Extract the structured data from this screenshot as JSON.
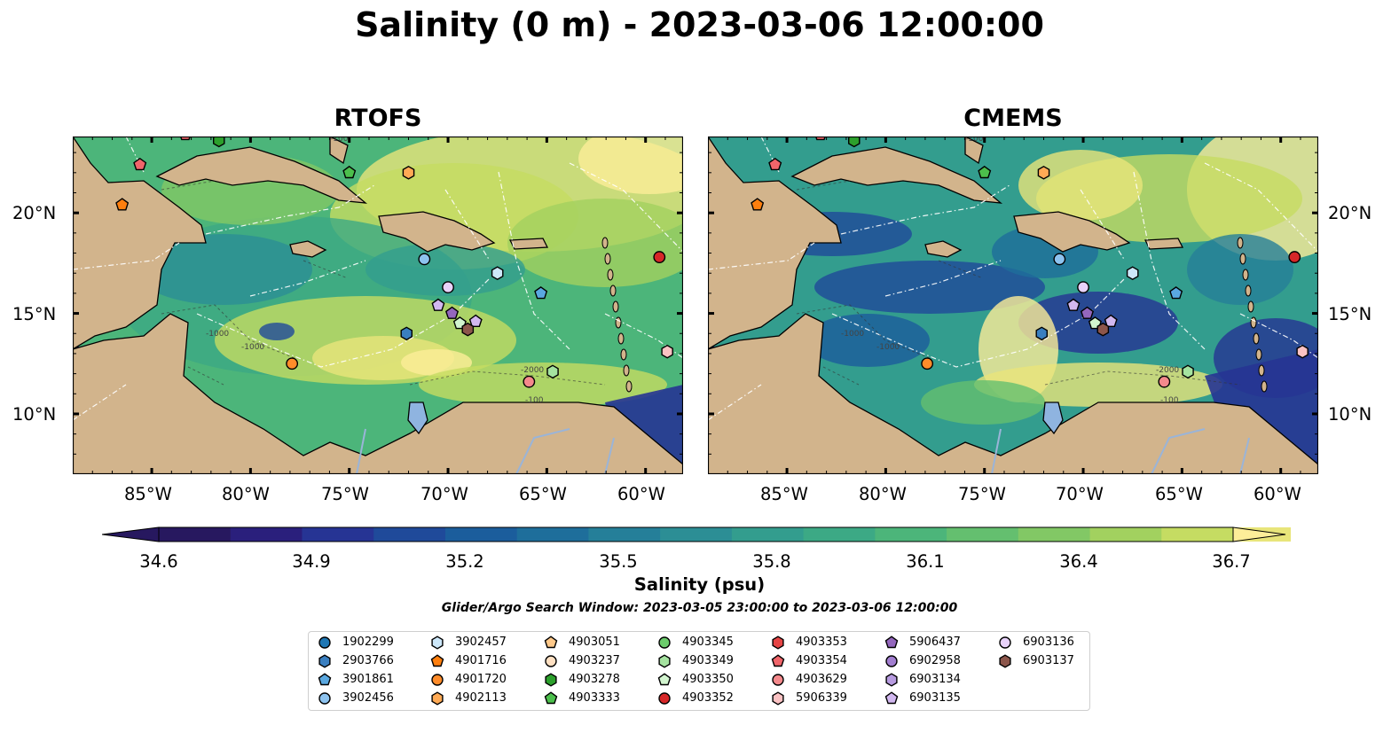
{
  "title": "Salinity (0 m) - 2023-03-06 12:00:00",
  "panels": [
    {
      "title": "RTOFS"
    },
    {
      "title": "CMEMS"
    }
  ],
  "lat_ticks": [
    "20°N",
    "15°N",
    "10°N"
  ],
  "lon_ticks": [
    "85°W",
    "80°W",
    "75°W",
    "70°W",
    "65°W",
    "60°W"
  ],
  "contour_labels": [
    "-100",
    "-1000",
    "-2000"
  ],
  "colorbar": {
    "ticks": [
      "34.6",
      "34.9",
      "35.2",
      "35.5",
      "35.8",
      "36.1",
      "36.4",
      "36.7"
    ],
    "label": "Salinity (psu)",
    "vmin": 34.6,
    "vmax": 36.7,
    "colors": [
      "#27185f",
      "#2a1f7c",
      "#263494",
      "#1f4a9a",
      "#1b5d9c",
      "#1e6e9b",
      "#257f99",
      "#2c8e95",
      "#339d8e",
      "#3ca985",
      "#4cb57a",
      "#64bf6f",
      "#82c865",
      "#a2d15f",
      "#c5dc62",
      "#e8e57a",
      "#fdee99"
    ]
  },
  "search_window": "Glider/Argo Search Window: 2023-03-05 23:00:00 to 2023-03-06 12:00:00",
  "legend": [
    {
      "id": "1902299",
      "marker": "circle",
      "color": "#1f77b4"
    },
    {
      "id": "2903766",
      "marker": "hexagon",
      "color": "#3a7fc0"
    },
    {
      "id": "3901861",
      "marker": "pentagon",
      "color": "#5aa8e0"
    },
    {
      "id": "3902456",
      "marker": "circle",
      "color": "#8dc3ef"
    },
    {
      "id": "3902457",
      "marker": "hexagon",
      "color": "#cde8fa"
    },
    {
      "id": "4901716",
      "marker": "pentagon",
      "color": "#ff7f0e"
    },
    {
      "id": "4901720",
      "marker": "circle",
      "color": "#ff8c2a"
    },
    {
      "id": "4902113",
      "marker": "hexagon",
      "color": "#ffaa55"
    },
    {
      "id": "4903051",
      "marker": "pentagon",
      "color": "#ffc98a"
    },
    {
      "id": "4903237",
      "marker": "circle",
      "color": "#ffe0c2"
    },
    {
      "id": "4903278",
      "marker": "hexagon",
      "color": "#2ca02c"
    },
    {
      "id": "4903333",
      "marker": "pentagon",
      "color": "#4cbf4c"
    },
    {
      "id": "4903345",
      "marker": "circle",
      "color": "#6ccc6c"
    },
    {
      "id": "4903349",
      "marker": "hexagon",
      "color": "#a5e3a0"
    },
    {
      "id": "4903350",
      "marker": "pentagon",
      "color": "#d2f5cf"
    },
    {
      "id": "4903352",
      "marker": "circle",
      "color": "#d62728"
    },
    {
      "id": "4903353",
      "marker": "hexagon",
      "color": "#e64545"
    },
    {
      "id": "4903354",
      "marker": "pentagon",
      "color": "#f0656a"
    },
    {
      "id": "4903629",
      "marker": "circle",
      "color": "#f4898c"
    },
    {
      "id": "5906339",
      "marker": "hexagon",
      "color": "#fbc2c3"
    },
    {
      "id": "5906437",
      "marker": "pentagon",
      "color": "#9467bd"
    },
    {
      "id": "6902958",
      "marker": "circle",
      "color": "#a27ed0"
    },
    {
      "id": "6903134",
      "marker": "hexagon",
      "color": "#b79be0"
    },
    {
      "id": "6903135",
      "marker": "pentagon",
      "color": "#d2b8f0"
    },
    {
      "id": "6903136",
      "marker": "circle",
      "color": "#e8d2fa"
    },
    {
      "id": "6903137",
      "marker": "hexagon",
      "color": "#8c564b"
    }
  ],
  "floats_rtofs": [
    {
      "id": "4903354",
      "lon": -83.3,
      "lat": 23.9
    },
    {
      "id": "4903278",
      "lon": -81.6,
      "lat": 23.6
    },
    {
      "id": "4903354",
      "lon": -85.6,
      "lat": 22.4
    },
    {
      "id": "4903333",
      "lon": -75.0,
      "lat": 22.0
    },
    {
      "id": "4902113",
      "lon": -72.0,
      "lat": 22.0
    },
    {
      "id": "4901716",
      "lon": -86.5,
      "lat": 20.4
    },
    {
      "id": "4903352",
      "lon": -59.3,
      "lat": 17.8
    },
    {
      "id": "3902456",
      "lon": -71.2,
      "lat": 17.7
    },
    {
      "id": "3902457",
      "lon": -67.5,
      "lat": 17.0
    },
    {
      "id": "6903136",
      "lon": -70.0,
      "lat": 16.3
    },
    {
      "id": "3901861",
      "lon": -65.3,
      "lat": 16.0
    },
    {
      "id": "6903135",
      "lon": -70.5,
      "lat": 15.4
    },
    {
      "id": "5906437",
      "lon": -69.8,
      "lat": 15.0
    },
    {
      "id": "6903135",
      "lon": -68.6,
      "lat": 14.6
    },
    {
      "id": "4903350",
      "lon": -69.4,
      "lat": 14.5
    },
    {
      "id": "6903137",
      "lon": -69.0,
      "lat": 14.2
    },
    {
      "id": "2903766",
      "lon": -72.1,
      "lat": 14.0
    },
    {
      "id": "5906339",
      "lon": -58.9,
      "lat": 13.1
    },
    {
      "id": "4901720",
      "lon": -77.9,
      "lat": 12.5
    },
    {
      "id": "4903349",
      "lon": -64.7,
      "lat": 12.1
    },
    {
      "id": "4903629",
      "lon": -65.9,
      "lat": 11.6
    }
  ],
  "floats_cmems": [
    {
      "id": "4903354",
      "lon": -83.3,
      "lat": 23.9
    },
    {
      "id": "4903278",
      "lon": -81.6,
      "lat": 23.6
    },
    {
      "id": "4903354",
      "lon": -85.6,
      "lat": 22.4
    },
    {
      "id": "4903333",
      "lon": -75.0,
      "lat": 22.0
    },
    {
      "id": "4902113",
      "lon": -72.0,
      "lat": 22.0
    },
    {
      "id": "4901716",
      "lon": -86.5,
      "lat": 20.4
    },
    {
      "id": "4903352",
      "lon": -59.3,
      "lat": 17.8
    },
    {
      "id": "3902456",
      "lon": -71.2,
      "lat": 17.7
    },
    {
      "id": "3902457",
      "lon": -67.5,
      "lat": 17.0
    },
    {
      "id": "6903136",
      "lon": -70.0,
      "lat": 16.3
    },
    {
      "id": "3901861",
      "lon": -65.3,
      "lat": 16.0
    },
    {
      "id": "6903135",
      "lon": -70.5,
      "lat": 15.4
    },
    {
      "id": "5906437",
      "lon": -69.8,
      "lat": 15.0
    },
    {
      "id": "6903135",
      "lon": -68.6,
      "lat": 14.6
    },
    {
      "id": "4903350",
      "lon": -69.4,
      "lat": 14.5
    },
    {
      "id": "6903137",
      "lon": -69.0,
      "lat": 14.2
    },
    {
      "id": "2903766",
      "lon": -72.1,
      "lat": 14.0
    },
    {
      "id": "5906339",
      "lon": -58.9,
      "lat": 13.1
    },
    {
      "id": "4901720",
      "lon": -77.9,
      "lat": 12.5
    },
    {
      "id": "4903349",
      "lon": -64.7,
      "lat": 12.1
    },
    {
      "id": "4903629",
      "lon": -65.9,
      "lat": 11.6
    }
  ],
  "map_extent": {
    "lon_min": -89.0,
    "lon_max": -58.1,
    "lat_min": 7.0,
    "lat_max": 23.8
  },
  "colors": {
    "land": "#d2b48c",
    "lake": "#8fb4e0",
    "background_sea": "#3ca985"
  }
}
